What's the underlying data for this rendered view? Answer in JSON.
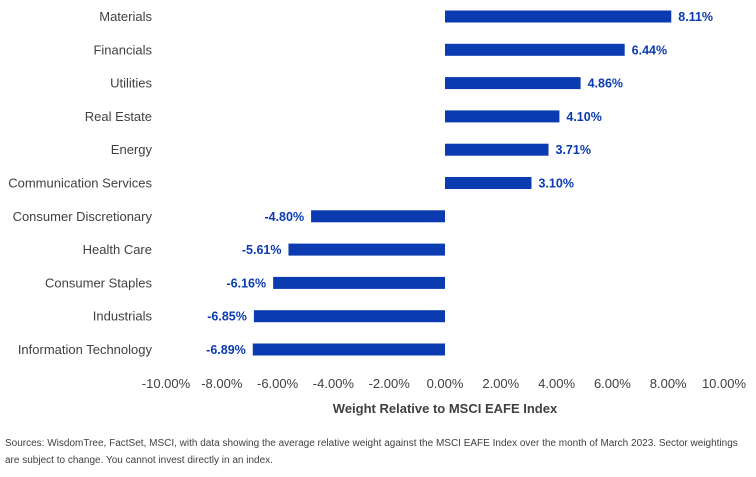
{
  "chart_data": {
    "type": "bar",
    "orientation": "horizontal",
    "categories": [
      "Materials",
      "Financials",
      "Utilities",
      "Real Estate",
      "Energy",
      "Communication Services",
      "Consumer Discretionary",
      "Health Care",
      "Consumer Staples",
      "Industrials",
      "Information Technology"
    ],
    "values": [
      8.11,
      6.44,
      4.86,
      4.1,
      3.71,
      3.1,
      -4.8,
      -5.61,
      -6.16,
      -6.85,
      -6.89
    ],
    "value_labels": [
      "8.11%",
      "6.44%",
      "4.86%",
      "4.10%",
      "3.71%",
      "3.10%",
      "-4.80%",
      "-5.61%",
      "-6.16%",
      "-6.85%",
      "-6.89%"
    ],
    "xlim": [
      -10,
      10
    ],
    "ticks": [
      -10,
      -8,
      -6,
      -4,
      -2,
      0,
      2,
      4,
      6,
      8,
      10
    ],
    "tick_labels": [
      "-10.00%",
      "-8.00%",
      "-6.00%",
      "-4.00%",
      "-2.00%",
      "0.00%",
      "2.00%",
      "4.00%",
      "6.00%",
      "8.00%",
      "10.00%"
    ],
    "xlabel": "Weight Relative to MSCI EAFE Index",
    "ylabel": "",
    "grid": false,
    "bar_color": "#0a3bb0",
    "label_color": "#0a3bb0"
  },
  "footnote": "Sources: WisdomTree, FactSet, MSCI, with data showing the average relative weight against the MSCI EAFE Index over the month of March 2023. Sector weightings are subject to change. You cannot invest directly in an index."
}
